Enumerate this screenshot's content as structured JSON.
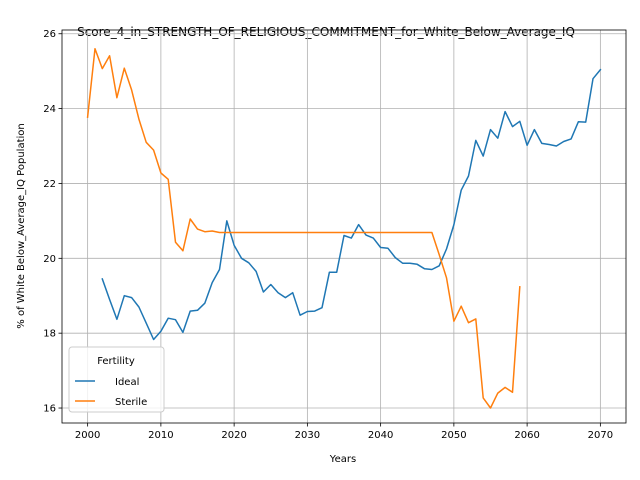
{
  "chart_data": {
    "type": "line",
    "title": "Score_4_in_STRENGTH_OF_RELIGIOUS_COMMITMENT_for_White_Below_Average_IQ",
    "xlabel": "Years",
    "ylabel": "% of White Below_Average_IQ Population",
    "xlim": [
      1996.5,
      2073.5
    ],
    "ylim": [
      15.6,
      26.1
    ],
    "xticks": [
      2000,
      2010,
      2020,
      2030,
      2040,
      2050,
      2060,
      2070
    ],
    "yticks": [
      16,
      18,
      20,
      22,
      24,
      26
    ],
    "grid": true,
    "legend": {
      "title": "Fertility",
      "placement": "lower-left"
    },
    "series": [
      {
        "name": "Ideal",
        "color": "#1f77b4",
        "x": [
          2002,
          2003,
          2004,
          2005,
          2006,
          2007,
          2008,
          2009,
          2010,
          2011,
          2012,
          2013,
          2014,
          2015,
          2016,
          2017,
          2018,
          2019,
          2020,
          2021,
          2022,
          2023,
          2024,
          2025,
          2026,
          2027,
          2028,
          2029,
          2030,
          2031,
          2032,
          2033,
          2034,
          2035,
          2036,
          2037,
          2038,
          2039,
          2040,
          2041,
          2042,
          2043,
          2044,
          2045,
          2046,
          2047,
          2048,
          2049,
          2050,
          2051,
          2052,
          2053,
          2054,
          2055,
          2056,
          2057,
          2058,
          2059,
          2060,
          2061,
          2062,
          2063,
          2064,
          2065,
          2066,
          2067,
          2068,
          2069,
          2070
        ],
        "y": [
          19.45,
          18.9,
          18.37,
          19.0,
          18.95,
          18.7,
          18.27,
          17.83,
          18.05,
          18.4,
          18.36,
          18.02,
          18.59,
          18.61,
          18.8,
          19.35,
          19.7,
          21.0,
          20.35,
          20.0,
          19.88,
          19.65,
          19.1,
          19.3,
          19.08,
          18.95,
          19.08,
          18.48,
          18.58,
          18.59,
          18.68,
          19.63,
          19.63,
          20.61,
          20.54,
          20.9,
          20.62,
          20.54,
          20.29,
          20.27,
          20.02,
          19.87,
          19.87,
          19.84,
          19.72,
          19.7,
          19.8,
          20.25,
          20.9,
          21.82,
          22.2,
          23.15,
          22.73,
          23.44,
          23.21,
          23.92,
          23.52,
          23.66,
          23.02,
          23.44,
          23.07,
          23.04,
          23.0,
          23.12,
          23.19,
          23.65,
          23.64,
          24.8,
          25.04
        ]
      },
      {
        "name": "Sterile",
        "color": "#ff7f0e",
        "x": [
          2000,
          2001,
          2002,
          2003,
          2004,
          2005,
          2006,
          2007,
          2008,
          2009,
          2010,
          2011,
          2012,
          2013,
          2014,
          2015,
          2016,
          2017,
          2018,
          2019,
          2020,
          2021,
          2022,
          2023,
          2024,
          2025,
          2026,
          2027,
          2028,
          2029,
          2030,
          2031,
          2032,
          2033,
          2034,
          2035,
          2036,
          2037,
          2038,
          2039,
          2040,
          2041,
          2042,
          2043,
          2044,
          2045,
          2046,
          2047,
          2048,
          2049,
          2050,
          2051,
          2052,
          2053,
          2054,
          2055,
          2056,
          2057,
          2058,
          2059
        ],
        "y": [
          23.77,
          25.6,
          25.07,
          25.41,
          24.29,
          25.08,
          24.5,
          23.72,
          23.1,
          22.89,
          22.28,
          22.11,
          20.43,
          20.2,
          21.05,
          20.78,
          20.71,
          20.73,
          20.69,
          20.69,
          20.69,
          20.69,
          20.69,
          20.69,
          20.69,
          20.69,
          20.69,
          20.69,
          20.69,
          20.69,
          20.69,
          20.69,
          20.69,
          20.69,
          20.69,
          20.69,
          20.69,
          20.69,
          20.69,
          20.69,
          20.69,
          20.69,
          20.69,
          20.69,
          20.69,
          20.69,
          20.69,
          20.69,
          20.1,
          19.48,
          18.32,
          18.72,
          18.28,
          18.38,
          16.27,
          16.0,
          16.4,
          16.55,
          16.42,
          19.24
        ]
      }
    ]
  }
}
